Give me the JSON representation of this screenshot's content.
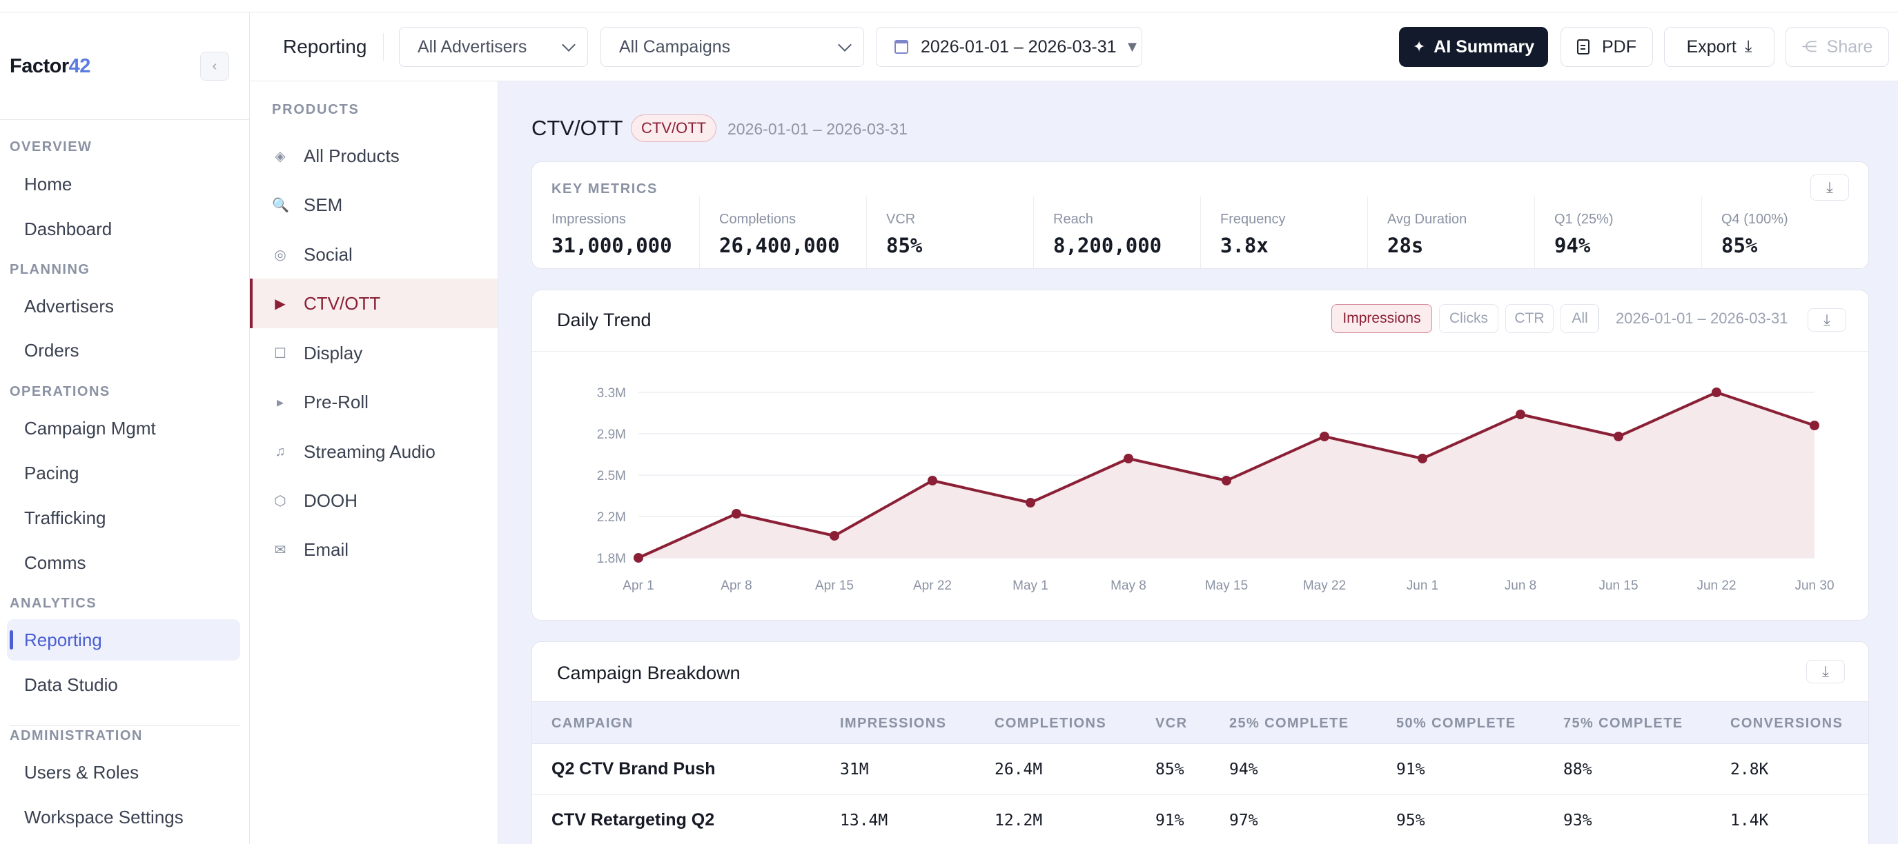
{
  "brand": {
    "name_part1": "Factor",
    "name_part2": "42",
    "collapse_glyph": "‹"
  },
  "sidebar": {
    "sections": [
      {
        "label": "OVERVIEW",
        "items": [
          {
            "label": "Home"
          },
          {
            "label": "Dashboard"
          }
        ]
      },
      {
        "label": "PLANNING",
        "items": [
          {
            "label": "Advertisers"
          },
          {
            "label": "Orders"
          }
        ]
      },
      {
        "label": "OPERATIONS",
        "items": [
          {
            "label": "Campaign Mgmt"
          },
          {
            "label": "Pacing"
          },
          {
            "label": "Trafficking"
          },
          {
            "label": "Comms"
          }
        ]
      },
      {
        "label": "ANALYTICS",
        "items": [
          {
            "label": "Reporting",
            "active": true
          },
          {
            "label": "Data Studio"
          }
        ]
      },
      {
        "label": "ADMINISTRATION",
        "items": [
          {
            "label": "Users & Roles"
          },
          {
            "label": "Workspace Settings"
          }
        ]
      }
    ],
    "accent_color": "#4a5fd2"
  },
  "header": {
    "title": "Reporting",
    "advertiser_select": "All Advertisers",
    "campaign_select": "All Campaigns",
    "date_range": "2026-01-01 – 2026-03-31",
    "ai_summary_label": "AI Summary",
    "pdf_label": "PDF",
    "export_label": "Export",
    "share_label": "Share"
  },
  "products": {
    "title": "PRODUCTS",
    "items": [
      {
        "label": "All Products",
        "icon": "diamond-icon",
        "glyph": "◈"
      },
      {
        "label": "SEM",
        "icon": "magnifier-icon",
        "glyph": "🔍"
      },
      {
        "label": "Social",
        "icon": "at-icon",
        "glyph": "◎"
      },
      {
        "label": "CTV/OTT",
        "icon": "play-icon",
        "glyph": "▶",
        "active": true
      },
      {
        "label": "Display",
        "icon": "square-icon",
        "glyph": "☐"
      },
      {
        "label": "Pre-Roll",
        "icon": "small-play-icon",
        "glyph": "▸"
      },
      {
        "label": "Streaming Audio",
        "icon": "music-note-icon",
        "glyph": "♫"
      },
      {
        "label": "DOOH",
        "icon": "hexagon-icon",
        "glyph": "⬡"
      },
      {
        "label": "Email",
        "icon": "envelope-icon",
        "glyph": "✉"
      }
    ],
    "accent_color": "#8a1f35"
  },
  "main": {
    "title": "CTV/OTT",
    "badge": "CTV/OTT",
    "date_range": "2026-01-01 – 2026-03-31",
    "key_metrics": {
      "title": "KEY METRICS",
      "items": [
        {
          "label": "Impressions",
          "value": "31,000,000"
        },
        {
          "label": "Completions",
          "value": "26,400,000"
        },
        {
          "label": "VCR",
          "value": "85%"
        },
        {
          "label": "Reach",
          "value": "8,200,000"
        },
        {
          "label": "Frequency",
          "value": "3.8x"
        },
        {
          "label": "Avg Duration",
          "value": "28s"
        },
        {
          "label": "Q1 (25%)",
          "value": "94%"
        },
        {
          "label": "Q4 (100%)",
          "value": "85%"
        }
      ]
    },
    "trend": {
      "title": "Daily Trend",
      "tabs": [
        {
          "label": "Impressions",
          "active": true
        },
        {
          "label": "Clicks"
        },
        {
          "label": "CTR"
        },
        {
          "label": "All"
        }
      ],
      "date_range": "2026-01-01 – 2026-03-31"
    },
    "breakdown": {
      "title": "Campaign Breakdown",
      "columns": [
        "CAMPAIGN",
        "IMPRESSIONS",
        "COMPLETIONS",
        "VCR",
        "25% COMPLETE",
        "50% COMPLETE",
        "75% COMPLETE",
        "CONVERSIONS"
      ],
      "rows": [
        [
          "Q2 CTV Brand Push",
          "31M",
          "26.4M",
          "85%",
          "94%",
          "91%",
          "88%",
          "2.8K"
        ],
        [
          "CTV Retargeting Q2",
          "13.4M",
          "12.2M",
          "91%",
          "97%",
          "95%",
          "93%",
          "1.4K"
        ]
      ]
    }
  },
  "chart_data": {
    "type": "area",
    "title": "Daily Trend",
    "x": [
      "Apr 1",
      "Apr 8",
      "Apr 15",
      "Apr 22",
      "May 1",
      "May 8",
      "May 15",
      "May 22",
      "Jun 1",
      "Jun 8",
      "Jun 15",
      "Jun 22",
      "Jun 30"
    ],
    "series": [
      {
        "name": "Impressions",
        "values": [
          1.8,
          2.2,
          2.0,
          2.5,
          2.3,
          2.7,
          2.5,
          2.9,
          2.7,
          3.1,
          2.9,
          3.3,
          3.0
        ]
      }
    ],
    "y_ticks": [
      "1.8M",
      "2.2M",
      "2.5M",
      "2.9M",
      "3.3M"
    ],
    "y_tick_values": [
      1.8,
      2.175,
      2.55,
      2.925,
      3.3
    ],
    "ylim": [
      1.8,
      3.3
    ],
    "y_unit": "millions",
    "line_color": "#8a1f35",
    "fill_color": "#f3e5e8",
    "grid": true
  }
}
